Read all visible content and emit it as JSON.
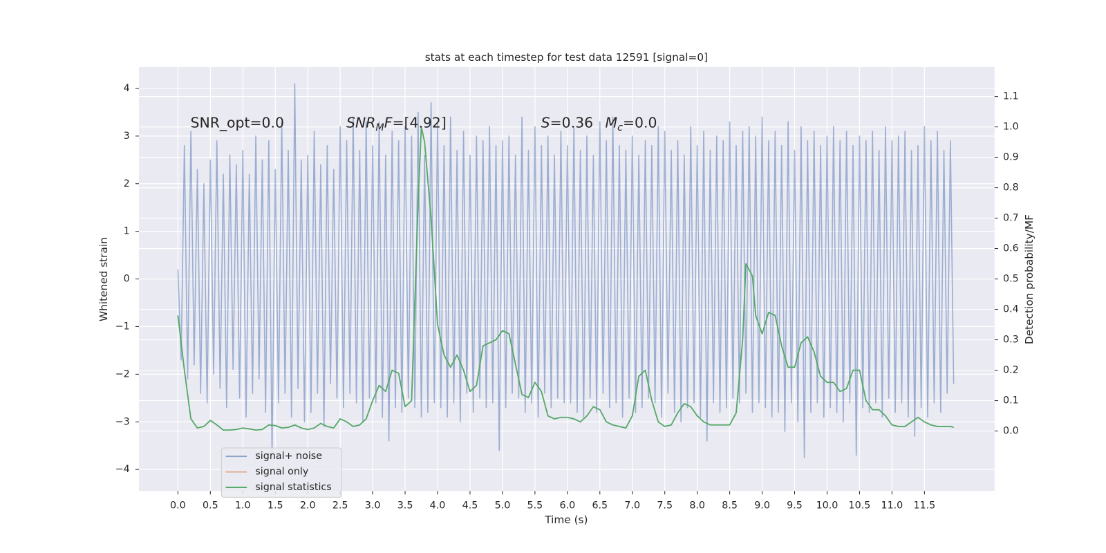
{
  "chart_data": {
    "type": "line",
    "title": "stats at each timestep for test data 12591 [signal=0]",
    "xlabel": "Time (s)",
    "ylabel": "Whitened strain",
    "y2label": "Detection probability/MF",
    "grid": true,
    "legend": "lower left",
    "xlim": [
      -0.6,
      12.58
    ],
    "ylim": [
      -4.45,
      4.45
    ],
    "y2lim": [
      -0.197,
      1.197
    ],
    "xticks": [
      {
        "value": 0,
        "label": "0.0"
      },
      {
        "value": 0.5,
        "label": "0.5"
      },
      {
        "value": 1,
        "label": "1.0"
      },
      {
        "value": 1.5,
        "label": "1.5"
      },
      {
        "value": 2,
        "label": "2.0"
      },
      {
        "value": 2.5,
        "label": "2.5"
      },
      {
        "value": 3,
        "label": "3.0"
      },
      {
        "value": 3.5,
        "label": "3.5"
      },
      {
        "value": 4,
        "label": "4.0"
      },
      {
        "value": 4.5,
        "label": "4.5"
      },
      {
        "value": 5,
        "label": "5.0"
      },
      {
        "value": 5.5,
        "label": "5.5"
      },
      {
        "value": 6,
        "label": "6.0"
      },
      {
        "value": 6.5,
        "label": "6.5"
      },
      {
        "value": 7,
        "label": "7.0"
      },
      {
        "value": 7.5,
        "label": "7.5"
      },
      {
        "value": 8,
        "label": "8.0"
      },
      {
        "value": 8.5,
        "label": "8.5"
      },
      {
        "value": 9,
        "label": "9.0"
      },
      {
        "value": 9.5,
        "label": "9.5"
      },
      {
        "value": 10,
        "label": "10.0"
      },
      {
        "value": 10.5,
        "label": "10.5"
      },
      {
        "value": 11,
        "label": "11.0"
      },
      {
        "value": 11.5,
        "label": "11.5"
      }
    ],
    "yticks": [
      {
        "value": -4,
        "label": "−4"
      },
      {
        "value": -3,
        "label": "−3"
      },
      {
        "value": -2,
        "label": "−2"
      },
      {
        "value": -1,
        "label": "−1"
      },
      0,
      1,
      2,
      3,
      4
    ],
    "y2ticks": [
      {
        "value": 0,
        "label": "0.0"
      },
      {
        "value": 0.1,
        "label": "0.1"
      },
      {
        "value": 0.2,
        "label": "0.2"
      },
      {
        "value": 0.3,
        "label": "0.3"
      },
      {
        "value": 0.4,
        "label": "0.4"
      },
      {
        "value": 0.5,
        "label": "0.5"
      },
      {
        "value": 0.6,
        "label": "0.6"
      },
      {
        "value": 0.7,
        "label": "0.7"
      },
      {
        "value": 0.8,
        "label": "0.8"
      },
      {
        "value": 0.9,
        "label": "0.9"
      },
      {
        "value": 1,
        "label": "1.0"
      },
      {
        "value": 1.1,
        "label": "1.1"
      }
    ],
    "annotations": [
      [
        {
          "text": "SNR_opt=0.0"
        }
      ],
      [
        {
          "text": "SNR",
          "italic": true
        },
        {
          "text": "M",
          "italic": true,
          "sub": true
        },
        {
          "text": "F",
          "italic": true
        },
        {
          "text": "=[4.92]"
        }
      ],
      [
        {
          "text": "S",
          "italic": true
        },
        {
          "text": "=0.36"
        }
      ],
      [
        {
          "text": "M",
          "italic": true
        },
        {
          "text": "c",
          "italic": true,
          "sub": true
        },
        {
          "text": "=0.0"
        }
      ]
    ],
    "series": [
      {
        "name": "signal+ noise",
        "color": "#4c72b0",
        "axis": "y",
        "x": [
          0,
          0.05,
          0.1,
          0.15,
          0.2,
          0.25,
          0.3,
          0.35,
          0.4,
          0.45,
          0.5,
          0.55,
          0.6,
          0.65,
          0.7,
          0.75,
          0.8,
          0.85,
          0.9,
          0.95,
          1,
          1.05,
          1.1,
          1.15,
          1.2,
          1.25,
          1.3,
          1.35,
          1.4,
          1.45,
          1.5,
          1.55,
          1.6,
          1.65,
          1.7,
          1.75,
          1.8,
          1.85,
          1.9,
          1.95,
          2,
          2.05,
          2.1,
          2.15,
          2.2,
          2.25,
          2.3,
          2.35,
          2.4,
          2.45,
          2.5,
          2.55,
          2.6,
          2.65,
          2.7,
          2.75,
          2.8,
          2.85,
          2.9,
          2.95,
          3,
          3.05,
          3.1,
          3.15,
          3.2,
          3.25,
          3.3,
          3.35,
          3.4,
          3.45,
          3.5,
          3.55,
          3.6,
          3.65,
          3.7,
          3.75,
          3.8,
          3.85,
          3.9,
          3.95,
          4,
          4.05,
          4.1,
          4.15,
          4.2,
          4.25,
          4.3,
          4.35,
          4.4,
          4.45,
          4.5,
          4.55,
          4.6,
          4.65,
          4.7,
          4.75,
          4.8,
          4.85,
          4.9,
          4.95,
          5,
          5.05,
          5.1,
          5.15,
          5.2,
          5.25,
          5.3,
          5.35,
          5.4,
          5.45,
          5.5,
          5.55,
          5.6,
          5.65,
          5.7,
          5.75,
          5.8,
          5.85,
          5.9,
          5.95,
          6,
          6.05,
          6.1,
          6.15,
          6.2,
          6.25,
          6.3,
          6.35,
          6.4,
          6.45,
          6.5,
          6.55,
          6.6,
          6.65,
          6.7,
          6.75,
          6.8,
          6.85,
          6.9,
          6.95,
          7,
          7.05,
          7.1,
          7.15,
          7.2,
          7.25,
          7.3,
          7.35,
          7.4,
          7.45,
          7.5,
          7.55,
          7.6,
          7.65,
          7.7,
          7.75,
          7.8,
          7.85,
          7.9,
          7.95,
          8,
          8.05,
          8.1,
          8.15,
          8.2,
          8.25,
          8.3,
          8.35,
          8.4,
          8.45,
          8.5,
          8.55,
          8.6,
          8.65,
          8.7,
          8.75,
          8.8,
          8.85,
          8.9,
          8.95,
          9,
          9.05,
          9.1,
          9.15,
          9.2,
          9.25,
          9.3,
          9.35,
          9.4,
          9.45,
          9.5,
          9.55,
          9.6,
          9.65,
          9.7,
          9.75,
          9.8,
          9.85,
          9.9,
          9.95,
          10,
          10.05,
          10.1,
          10.15,
          10.2,
          10.25,
          10.3,
          10.35,
          10.4,
          10.45,
          10.5,
          10.55,
          10.6,
          10.65,
          10.7,
          10.75,
          10.8,
          10.85,
          10.9,
          10.95,
          11,
          11.05,
          11.1,
          11.15,
          11.2,
          11.25,
          11.3,
          11.35,
          11.4,
          11.45,
          11.5,
          11.55,
          11.6,
          11.65,
          11.7,
          11.75,
          11.8,
          11.85,
          11.9,
          11.95
        ],
        "values": [
          0.2,
          -1.7,
          2.8,
          -2.1,
          3.1,
          -1.8,
          2.3,
          -2.4,
          2.0,
          -2.6,
          2.5,
          -2.0,
          2.9,
          -2.3,
          2.2,
          -2.7,
          2.6,
          -1.9,
          2.4,
          -2.5,
          2.7,
          -2.9,
          2.2,
          -2.4,
          3.0,
          -2.1,
          2.5,
          -2.8,
          2.9,
          -3.7,
          2.3,
          -2.6,
          3.3,
          -2.4,
          2.7,
          -2.9,
          4.1,
          -2.3,
          2.5,
          -3.0,
          2.6,
          -2.8,
          3.1,
          -2.4,
          2.4,
          -3.1,
          2.8,
          -2.2,
          2.3,
          -2.5,
          3.2,
          -2.7,
          2.9,
          -2.4,
          3.4,
          -2.6,
          2.7,
          -3.0,
          3.3,
          -2.5,
          2.8,
          -2.6,
          3.3,
          -2.9,
          2.6,
          -3.4,
          3.1,
          -2.7,
          2.9,
          -2.8,
          3.2,
          -2.5,
          3.0,
          -2.7,
          3.5,
          -2.9,
          2.6,
          -2.8,
          3.7,
          -2.6,
          3.3,
          -2.7,
          2.8,
          -2.9,
          3.4,
          -2.6,
          2.7,
          -3.0,
          3.1,
          -2.4,
          2.6,
          -2.8,
          3.0,
          -2.5,
          2.9,
          -2.7,
          3.2,
          -2.6,
          2.8,
          -3.6,
          2.9,
          -2.7,
          3.0,
          -2.4,
          2.6,
          -2.5,
          3.4,
          -2.8,
          2.7,
          -2.6,
          3.2,
          -2.9,
          2.8,
          -2.4,
          3.0,
          -2.7,
          2.6,
          -2.5,
          3.1,
          -2.6,
          2.8,
          -2.6,
          3.2,
          -2.8,
          2.7,
          -2.9,
          3.0,
          -2.5,
          2.6,
          -2.8,
          3.3,
          -2.4,
          2.9,
          -2.7,
          3.4,
          -2.6,
          2.8,
          -2.9,
          2.7,
          -2.5,
          3.0,
          -2.8,
          2.6,
          -2.7,
          2.9,
          -2.5,
          2.8,
          -2.6,
          3.2,
          -2.9,
          3.1,
          -2.4,
          2.7,
          -2.8,
          2.9,
          -3.0,
          2.6,
          -2.7,
          3.2,
          -2.6,
          2.8,
          -2.9,
          3.1,
          -3.4,
          2.7,
          -2.6,
          3.0,
          -2.8,
          2.9,
          -2.7,
          3.3,
          -2.5,
          2.8,
          -2.6,
          3.1,
          -2.4,
          3.2,
          -2.8,
          3.0,
          -2.6,
          3.4,
          -2.7,
          2.9,
          -2.9,
          3.1,
          -2.8,
          2.8,
          -3.2,
          3.3,
          -2.6,
          2.7,
          -3.0,
          3.2,
          -3.75,
          2.9,
          -2.8,
          3.1,
          -2.6,
          2.8,
          -2.9,
          3.0,
          -2.7,
          3.2,
          -2.8,
          2.9,
          -3.0,
          3.1,
          -2.6,
          2.8,
          -3.7,
          3.0,
          -2.7,
          2.9,
          -2.8,
          3.1,
          -2.6,
          2.7,
          -2.9,
          3.2,
          -2.5,
          2.9,
          -2.8,
          3.0,
          -2.6,
          3.1,
          -2.9,
          2.7,
          -3.3,
          2.8,
          -2.7,
          3.2,
          -2.9,
          2.9,
          -2.6,
          3.1,
          -2.8,
          2.7,
          -2.4,
          2.9,
          -2.2
        ]
      },
      {
        "name": "signal only",
        "color": "#dd8452",
        "axis": "y",
        "x": [],
        "values": []
      },
      {
        "name": "signal statistics",
        "color": "#55a868",
        "axis": "y2",
        "x": [
          0,
          0.1,
          0.2,
          0.3,
          0.4,
          0.5,
          0.6,
          0.7,
          0.8,
          0.9,
          1,
          1.1,
          1.2,
          1.3,
          1.4,
          1.5,
          1.6,
          1.7,
          1.8,
          1.9,
          2,
          2.1,
          2.2,
          2.3,
          2.4,
          2.5,
          2.6,
          2.7,
          2.8,
          2.9,
          3,
          3.1,
          3.2,
          3.3,
          3.4,
          3.5,
          3.6,
          3.7,
          3.75,
          3.8,
          3.9,
          4,
          4.1,
          4.2,
          4.3,
          4.4,
          4.5,
          4.6,
          4.7,
          4.8,
          4.9,
          5,
          5.1,
          5.2,
          5.3,
          5.4,
          5.5,
          5.6,
          5.7,
          5.8,
          5.9,
          6,
          6.1,
          6.2,
          6.3,
          6.4,
          6.5,
          6.6,
          6.7,
          6.8,
          6.9,
          7,
          7.1,
          7.2,
          7.3,
          7.4,
          7.5,
          7.6,
          7.7,
          7.8,
          7.9,
          8,
          8.1,
          8.2,
          8.3,
          8.4,
          8.5,
          8.6,
          8.7,
          8.75,
          8.85,
          8.9,
          9,
          9.1,
          9.2,
          9.3,
          9.4,
          9.5,
          9.6,
          9.7,
          9.8,
          9.9,
          10,
          10.1,
          10.2,
          10.3,
          10.4,
          10.5,
          10.6,
          10.7,
          10.8,
          10.9,
          11,
          11.1,
          11.2,
          11.3,
          11.4,
          11.5,
          11.6,
          11.7,
          11.8,
          11.9,
          11.95
        ],
        "values": [
          0.38,
          0.2,
          0.04,
          0.01,
          0.015,
          0.035,
          0.02,
          0.003,
          0.003,
          0.005,
          0.01,
          0.007,
          0.003,
          0.005,
          0.02,
          0.018,
          0.01,
          0.012,
          0.02,
          0.01,
          0.005,
          0.01,
          0.025,
          0.015,
          0.01,
          0.04,
          0.03,
          0.015,
          0.02,
          0.04,
          0.1,
          0.15,
          0.13,
          0.2,
          0.19,
          0.08,
          0.1,
          0.75,
          1.0,
          0.95,
          0.7,
          0.35,
          0.25,
          0.21,
          0.25,
          0.2,
          0.13,
          0.15,
          0.28,
          0.29,
          0.3,
          0.33,
          0.32,
          0.22,
          0.12,
          0.11,
          0.16,
          0.13,
          0.05,
          0.04,
          0.045,
          0.045,
          0.04,
          0.03,
          0.05,
          0.08,
          0.07,
          0.03,
          0.02,
          0.015,
          0.01,
          0.05,
          0.18,
          0.2,
          0.1,
          0.03,
          0.015,
          0.02,
          0.06,
          0.09,
          0.08,
          0.05,
          0.03,
          0.02,
          0.02,
          0.02,
          0.02,
          0.06,
          0.3,
          0.55,
          0.51,
          0.38,
          0.32,
          0.39,
          0.38,
          0.28,
          0.21,
          0.21,
          0.29,
          0.31,
          0.26,
          0.18,
          0.16,
          0.16,
          0.13,
          0.14,
          0.2,
          0.2,
          0.1,
          0.07,
          0.07,
          0.05,
          0.02,
          0.015,
          0.015,
          0.03,
          0.045,
          0.03,
          0.02,
          0.015,
          0.015,
          0.015,
          0.012
        ]
      }
    ]
  }
}
